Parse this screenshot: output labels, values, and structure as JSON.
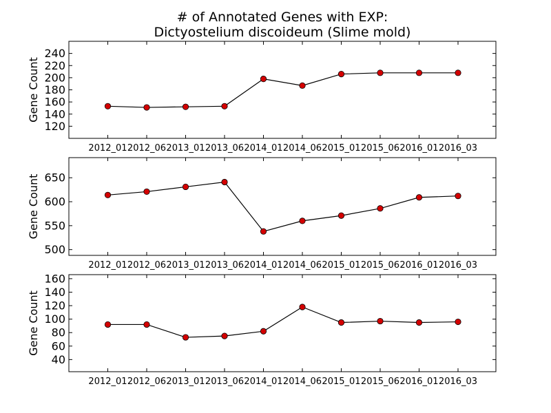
{
  "chart_data": {
    "type": "line",
    "title_line1": "# of Annotated Genes with EXP:",
    "title_line2": "Dictyostelium discoideum (Slime mold)",
    "categories": [
      "2012_01",
      "2012_06",
      "2013_01",
      "2013_06",
      "2014_01",
      "2014_06",
      "2015_01",
      "2015_06",
      "2016_01",
      "2016_03"
    ],
    "marker_color": "#d40000",
    "line_color": "#000000",
    "grid": false,
    "panels": [
      {
        "ylabel": "Gene Count",
        "ylim": [
          100,
          260
        ],
        "yticks": [
          120,
          140,
          160,
          180,
          200,
          220,
          240
        ],
        "values": [
          153,
          151,
          152,
          153,
          198,
          187,
          206,
          208,
          208,
          208
        ]
      },
      {
        "ylabel": "Gene Count",
        "ylim": [
          488,
          692
        ],
        "yticks": [
          500,
          550,
          600,
          650
        ],
        "values": [
          614,
          621,
          631,
          641,
          538,
          560,
          571,
          586,
          609,
          612
        ]
      },
      {
        "ylabel": "Gene Count",
        "ylim": [
          22,
          166
        ],
        "yticks": [
          40,
          60,
          80,
          100,
          120,
          140,
          160
        ],
        "values": [
          92,
          92,
          73,
          75,
          82,
          118,
          95,
          97,
          95,
          96
        ]
      }
    ]
  }
}
